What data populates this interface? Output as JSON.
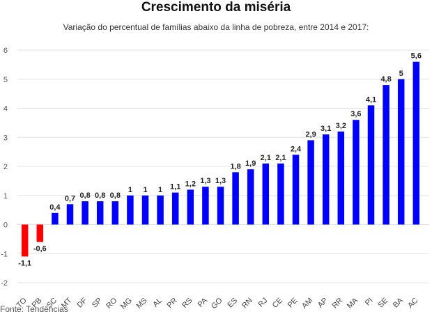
{
  "chart_data": {
    "type": "bar",
    "title": "Crescimento da miséria",
    "subtitle": "Variação do percentual de famílias abaixo da linha de pobreza, entre 2014 e 2017:",
    "source": "Fonte: Tendências",
    "categories": [
      "TO",
      "PB",
      "SC",
      "MT",
      "DF",
      "SP",
      "RO",
      "MG",
      "MS",
      "AL",
      "PR",
      "RS",
      "PA",
      "GO",
      "ES",
      "RN",
      "RJ",
      "CE",
      "PE",
      "AM",
      "AP",
      "RR",
      "MA",
      "PI",
      "SE",
      "BA",
      "AC"
    ],
    "values": [
      -1.1,
      -0.6,
      0.4,
      0.7,
      0.8,
      0.8,
      0.8,
      1,
      1,
      1,
      1.1,
      1.2,
      1.3,
      1.3,
      1.8,
      1.9,
      2.1,
      2.1,
      2.4,
      2.9,
      3.1,
      3.2,
      3.6,
      4.1,
      4.8,
      5,
      5.6
    ],
    "data_labels": [
      "-1,1",
      "-0,6",
      "0,4",
      "0,7",
      "0,8",
      "0,8",
      "0,8",
      "1",
      "1",
      "1",
      "1,1",
      "1,2",
      "1,3",
      "1,3",
      "1,8",
      "1,9",
      "2,1",
      "2,1",
      "2,4",
      "2,9",
      "3,1",
      "3,2",
      "3,6",
      "4,1",
      "4,8",
      "5",
      "5,6"
    ],
    "ylim": [
      -2,
      6
    ],
    "yticks": [
      -2,
      -1,
      0,
      1,
      2,
      3,
      4,
      5,
      6
    ],
    "ytick_labels": [
      "-2",
      "-1",
      "0",
      "1",
      "2",
      "3",
      "4",
      "5",
      "6"
    ],
    "grid": true,
    "colors": {
      "positive": "#0000ff",
      "negative": "#ff0000",
      "highlight": "#0000ff",
      "grid": "#e3e3e3"
    },
    "xlabel": "",
    "ylabel": ""
  }
}
